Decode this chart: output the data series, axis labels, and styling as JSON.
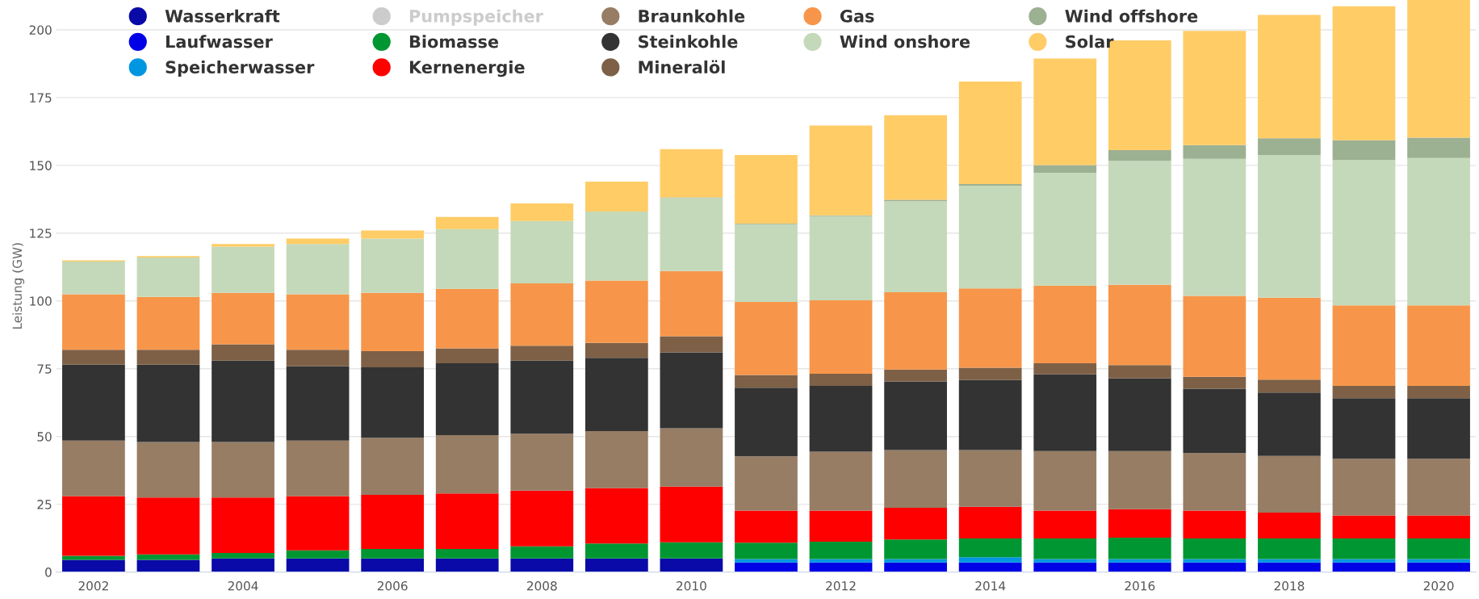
{
  "chart_data": {
    "type": "bar",
    "stacked": true,
    "ylabel": "Leistung (GW)",
    "categories": [
      "2002",
      null,
      "2004",
      null,
      "2006",
      null,
      "2008",
      null,
      "2010",
      null,
      "2012",
      null,
      "2014",
      null,
      "2016",
      null,
      "2018",
      null,
      "2020"
    ],
    "ylim": [
      0,
      211
    ],
    "yticks": [
      0,
      25,
      50,
      75,
      100,
      125,
      150,
      175,
      200
    ],
    "grid": "y",
    "legend": "top left",
    "series": [
      {
        "name": "Wasserkraft",
        "color": "#0a0aa8",
        "values": [
          4.5,
          4.5,
          5,
          5,
          5,
          5,
          5,
          5,
          5,
          null,
          null,
          null,
          null,
          null,
          null,
          null,
          null,
          null,
          null
        ]
      },
      {
        "name": "Laufwasser",
        "color": "#0000e6",
        "values": [
          null,
          null,
          null,
          null,
          null,
          null,
          null,
          null,
          null,
          3.5,
          3.5,
          3.5,
          3.5,
          3.5,
          3.5,
          3.5,
          3.5,
          3.5,
          3.5
        ]
      },
      {
        "name": "Speicherwasser",
        "color": "#0096e0",
        "values": [
          null,
          null,
          null,
          null,
          null,
          null,
          null,
          null,
          null,
          1.3,
          1.3,
          1.3,
          2.0,
          1.3,
          1.3,
          1.3,
          1.3,
          1.3,
          1.3
        ]
      },
      {
        "name": "Pumpspeicher",
        "color": "#cccccc",
        "values": [
          null,
          null,
          null,
          null,
          null,
          null,
          null,
          null,
          null,
          null,
          null,
          null,
          null,
          null,
          null,
          null,
          null,
          null,
          null
        ]
      },
      {
        "name": "Biomasse",
        "color": "#009632",
        "values": [
          1.5,
          2,
          2,
          3,
          3.5,
          3.5,
          4.5,
          5.5,
          6,
          6.0,
          6.4,
          7.2,
          6.9,
          7.6,
          7.9,
          7.6,
          7.6,
          7.6,
          7.6
        ]
      },
      {
        "name": "Kernenergie",
        "color": "#ff0000",
        "values": [
          22,
          21,
          20.5,
          20,
          20,
          20.5,
          20.5,
          20.5,
          20.5,
          11.9,
          11.5,
          11.7,
          11.7,
          10.3,
          10.5,
          10.3,
          9.5,
          8.5,
          8.5
        ]
      },
      {
        "name": "Braunkohle",
        "color": "#967d64",
        "values": [
          20.5,
          20.5,
          20.5,
          20.5,
          21,
          21.5,
          21,
          21,
          21.5,
          20.0,
          21.7,
          21.3,
          20.9,
          21.9,
          21.4,
          21.2,
          20.9,
          20.9,
          20.9
        ]
      },
      {
        "name": "Steinkohle",
        "color": "#333333",
        "values": [
          28,
          28.5,
          30,
          27.5,
          26,
          26.5,
          27,
          27,
          28,
          25.3,
          24.3,
          25.3,
          25.8,
          28.3,
          26.9,
          23.7,
          23.4,
          22.3,
          22.3
        ]
      },
      {
        "name": "Mineralöl",
        "color": "#7d6046",
        "values": [
          5.5,
          5.5,
          6,
          6,
          6,
          5.5,
          5.5,
          5.5,
          6,
          4.7,
          4.4,
          4.4,
          4.6,
          4.1,
          4.8,
          4.4,
          4.8,
          4.6,
          4.6
        ]
      },
      {
        "name": "Gas",
        "color": "#f7964a",
        "values": [
          20.5,
          19.5,
          19,
          20.5,
          21.5,
          22,
          23,
          23,
          24,
          26.9,
          27.1,
          28.5,
          29.2,
          28.7,
          29.7,
          29.9,
          30.2,
          29.7,
          29.7
        ]
      },
      {
        "name": "Wind onshore",
        "color": "#c4d9b9",
        "values": [
          12,
          14.5,
          17,
          18.5,
          20,
          22,
          23,
          25.5,
          27,
          28.7,
          31.1,
          33.6,
          37.9,
          41.6,
          45.7,
          50.5,
          52.6,
          53.6,
          54.3
        ]
      },
      {
        "name": "Wind offshore",
        "color": "#9cb092",
        "values": [
          null,
          null,
          null,
          null,
          null,
          null,
          null,
          null,
          0.2,
          0.2,
          0.3,
          0.5,
          0.6,
          2.8,
          3.9,
          5.1,
          6.2,
          7.3,
          7.5
        ]
      },
      {
        "name": "Solar",
        "color": "#ffcc66",
        "values": [
          0.5,
          0.5,
          1,
          2,
          3,
          4.5,
          6.5,
          11,
          17.8,
          25.3,
          33.1,
          31.2,
          37.8,
          39.3,
          40.5,
          42.1,
          45.5,
          49.4,
          50.8
        ]
      }
    ]
  }
}
